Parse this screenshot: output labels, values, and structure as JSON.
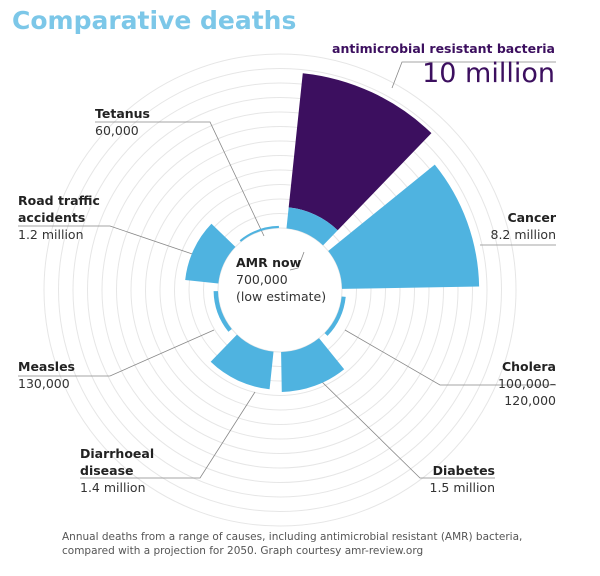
{
  "chart_data": {
    "type": "polar_area",
    "title": "Comparative deaths",
    "categories": [
      "antimicrobial resistant bacteria",
      "Cancer",
      "Cholera",
      "Diabetes",
      "Diarrhoeal disease",
      "Measles",
      "Road traffic accidents",
      "Tetanus"
    ],
    "values": [
      10000000,
      8200000,
      120000,
      1500000,
      1400000,
      130000,
      1200000,
      60000
    ],
    "value_labels": [
      "10 million",
      "8.2 million",
      "100,000–120,000",
      "1.5 million",
      "1.4 million",
      "130,000",
      "1.2 million",
      "60,000"
    ],
    "colors": [
      "#3c0f5f",
      "#4fb3e0",
      "#4fb3e0",
      "#4fb3e0",
      "#4fb3e0",
      "#4fb3e0",
      "#4fb3e0",
      "#4fb3e0"
    ],
    "now": {
      "label": "AMR now",
      "value": 700000,
      "value_label": "700,000",
      "note": "(low estimate)",
      "color": "#4fb3e0"
    },
    "caption": "Annual deaths from a range of causes, including antimicrobial resistant (AMR) bacteria, compared with a projection for 2050. Graph courtesy amr-review.org"
  }
}
